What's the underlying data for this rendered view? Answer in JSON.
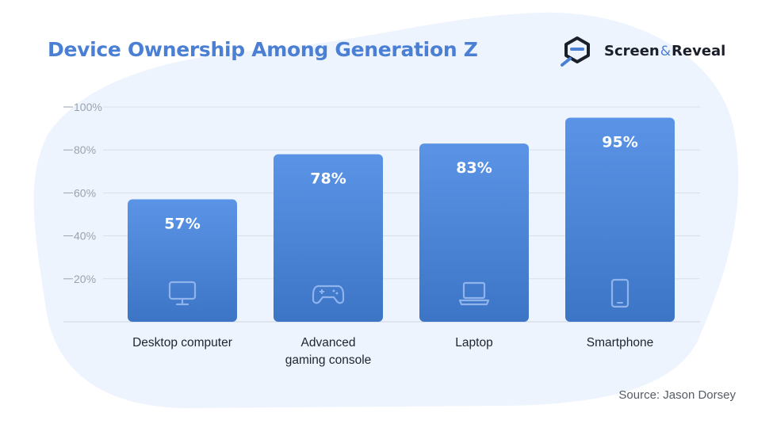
{
  "title": "Device Ownership Among Generation Z",
  "brand": {
    "name_part1": "Screen",
    "amp": "&",
    "name_part2": "Reveal"
  },
  "source": "Source: Jason Dorsey",
  "colors": {
    "title": "#4a7fd4",
    "bar_top": "#5b93e6",
    "bar_bottom": "#3d75c6",
    "bar_label": "#ffffff",
    "grid": "#d9dee6",
    "tick": "#9aa3b0",
    "background_blob": "#eef4fd"
  },
  "chart_data": {
    "type": "bar",
    "categories": [
      [
        "Desktop computer"
      ],
      [
        "Advanced",
        "gaming console"
      ],
      [
        "Laptop"
      ],
      [
        "Smartphone"
      ]
    ],
    "values": [
      57,
      78,
      83,
      95
    ],
    "data_labels": [
      "57%",
      "78%",
      "83%",
      "95%"
    ],
    "icons": [
      "monitor-icon",
      "gamepad-icon",
      "laptop-icon",
      "smartphone-icon"
    ],
    "ylim": [
      0,
      100
    ],
    "yticks": [
      20,
      40,
      60,
      80,
      100
    ],
    "ytick_labels": [
      "20%",
      "40%",
      "60%",
      "80%",
      "100%"
    ],
    "grid": true,
    "legend": "none"
  }
}
